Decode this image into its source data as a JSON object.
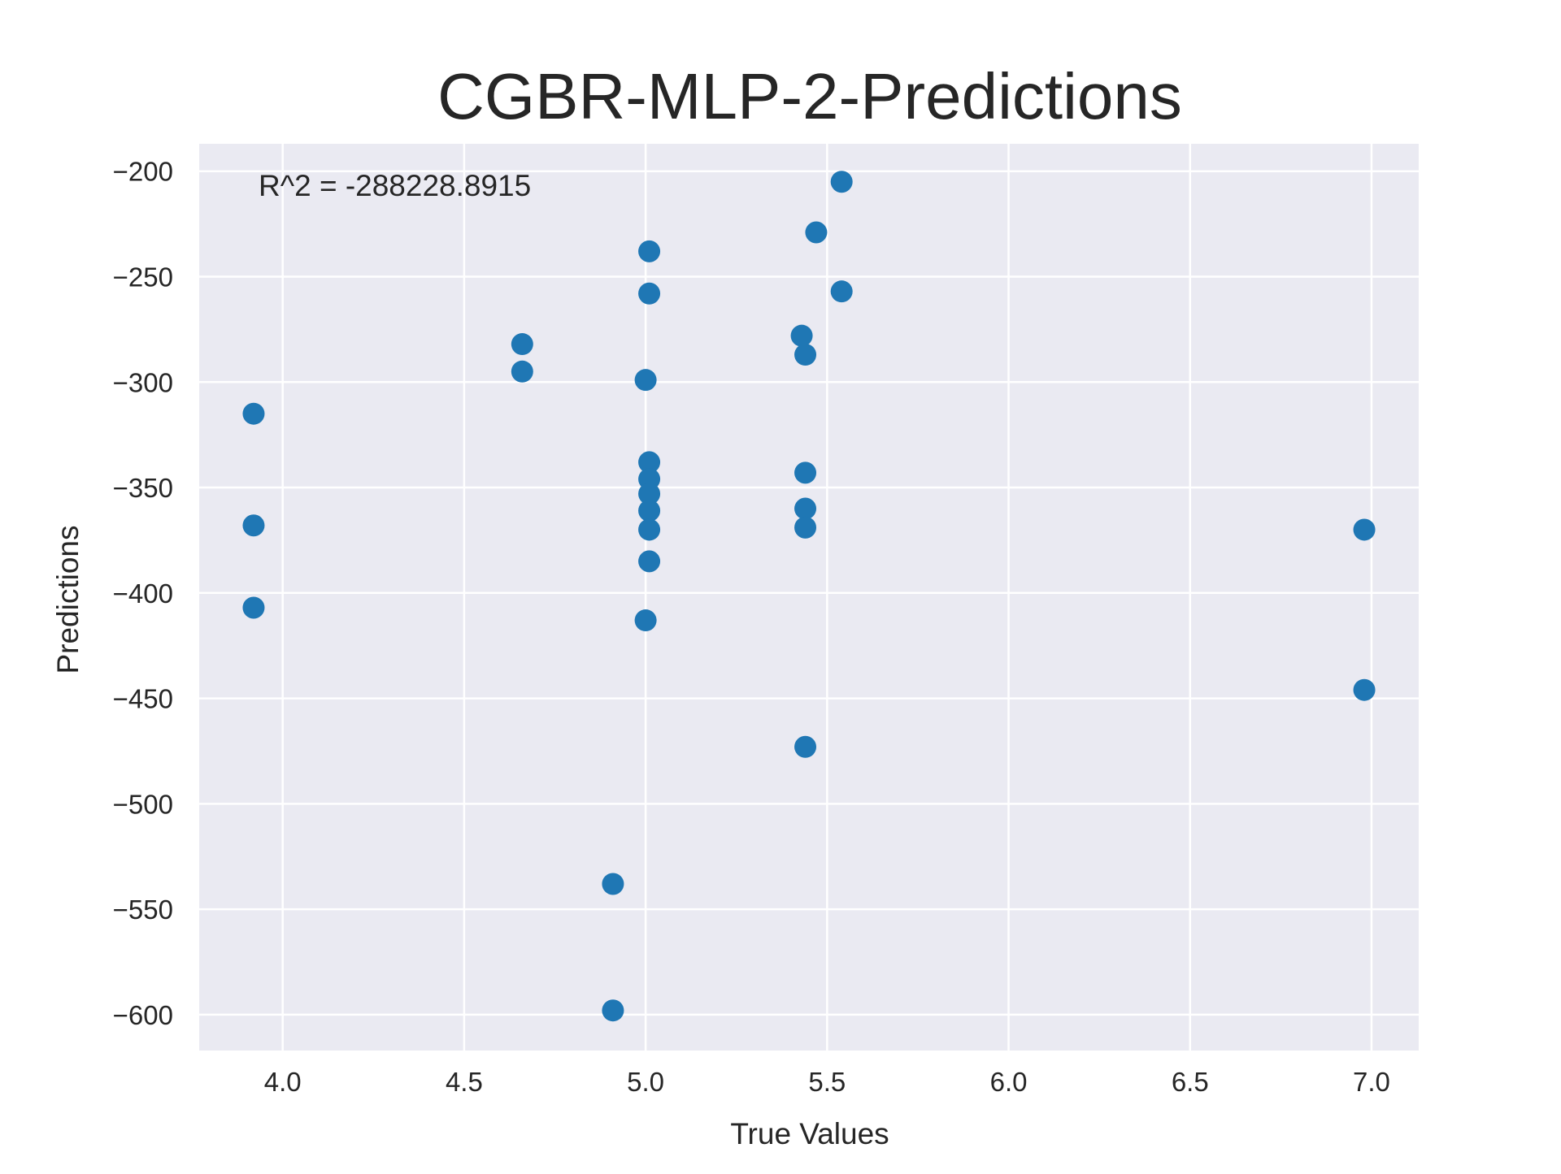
{
  "chart_data": {
    "type": "scatter",
    "title": "CGBR-MLP-2-Predictions",
    "xlabel": "True Values",
    "ylabel": "Predictions",
    "annotation": "R^2 = -288228.8915",
    "xlim": [
      3.77,
      7.13
    ],
    "ylim": [
      -617,
      -187
    ],
    "x_ticks": [
      4.0,
      4.5,
      5.0,
      5.5,
      6.0,
      6.5,
      7.0
    ],
    "x_tick_labels": [
      "4.0",
      "4.5",
      "5.0",
      "5.5",
      "6.0",
      "6.5",
      "7.0"
    ],
    "y_ticks": [
      -200,
      -250,
      -300,
      -350,
      -400,
      -450,
      -500,
      -550,
      -600
    ],
    "y_tick_labels": [
      "−200",
      "−250",
      "−300",
      "−350",
      "−400",
      "−450",
      "−500",
      "−550",
      "−600"
    ],
    "grid": true,
    "background_color": "#eaeaf2",
    "marker_color": "#1f77b4",
    "points": [
      {
        "x": 3.92,
        "y": -315
      },
      {
        "x": 3.92,
        "y": -368
      },
      {
        "x": 3.92,
        "y": -407
      },
      {
        "x": 4.66,
        "y": -282
      },
      {
        "x": 4.66,
        "y": -295
      },
      {
        "x": 4.91,
        "y": -538
      },
      {
        "x": 4.91,
        "y": -598
      },
      {
        "x": 5.0,
        "y": -299
      },
      {
        "x": 5.0,
        "y": -413
      },
      {
        "x": 5.01,
        "y": -238
      },
      {
        "x": 5.01,
        "y": -258
      },
      {
        "x": 5.01,
        "y": -338
      },
      {
        "x": 5.01,
        "y": -346
      },
      {
        "x": 5.01,
        "y": -353
      },
      {
        "x": 5.01,
        "y": -361
      },
      {
        "x": 5.01,
        "y": -370
      },
      {
        "x": 5.01,
        "y": -385
      },
      {
        "x": 5.43,
        "y": -278
      },
      {
        "x": 5.44,
        "y": -287
      },
      {
        "x": 5.44,
        "y": -343
      },
      {
        "x": 5.44,
        "y": -360
      },
      {
        "x": 5.44,
        "y": -369
      },
      {
        "x": 5.44,
        "y": -473
      },
      {
        "x": 5.47,
        "y": -229
      },
      {
        "x": 5.54,
        "y": -205
      },
      {
        "x": 5.54,
        "y": -257
      },
      {
        "x": 6.98,
        "y": -370
      },
      {
        "x": 6.98,
        "y": -446
      }
    ]
  }
}
